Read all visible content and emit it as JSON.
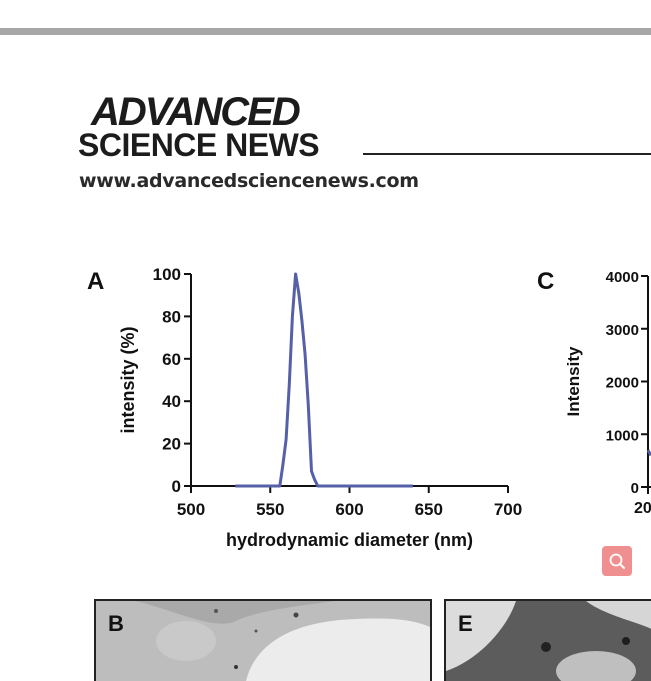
{
  "header": {
    "brand_line1": "ADVANCED",
    "brand_line2": "SCIENCE NEWS",
    "url": "www.advancedsciencenews.com"
  },
  "panels": {
    "a_label": "A",
    "b_label": "B",
    "c_label": "C",
    "e_label": "E"
  },
  "search_button": {
    "icon": "search-icon"
  },
  "chart_data": [
    {
      "id": "A",
      "type": "line",
      "xlabel": "hydrodynamic diameter (nm)",
      "ylabel": "intensity (%)",
      "xlim": [
        500,
        700
      ],
      "ylim": [
        0,
        100
      ],
      "x_ticks": [
        "500",
        "550",
        "600",
        "650",
        "700"
      ],
      "y_ticks": [
        "0",
        "20",
        "40",
        "60",
        "80",
        "100"
      ],
      "color": "#5560a8",
      "series": [
        {
          "x": [
            528,
            556,
            558,
            560,
            562,
            564,
            566,
            568,
            570,
            572,
            574,
            576,
            578,
            580,
            582,
            640
          ],
          "y": [
            0,
            0,
            10,
            22,
            48,
            80,
            100,
            91,
            78,
            62,
            38,
            7,
            3,
            0,
            0,
            0
          ]
        }
      ]
    },
    {
      "id": "C",
      "type": "line",
      "ylabel": "Intensity",
      "ylim": [
        0,
        4000
      ],
      "y_ticks": [
        "0",
        "1000",
        "2000",
        "3000",
        "4000"
      ],
      "x_ticks": [
        "20"
      ],
      "color": "#5560a8",
      "series": [
        {
          "x": [
            0,
            1
          ],
          "y": [
            700,
            600
          ]
        }
      ]
    }
  ]
}
